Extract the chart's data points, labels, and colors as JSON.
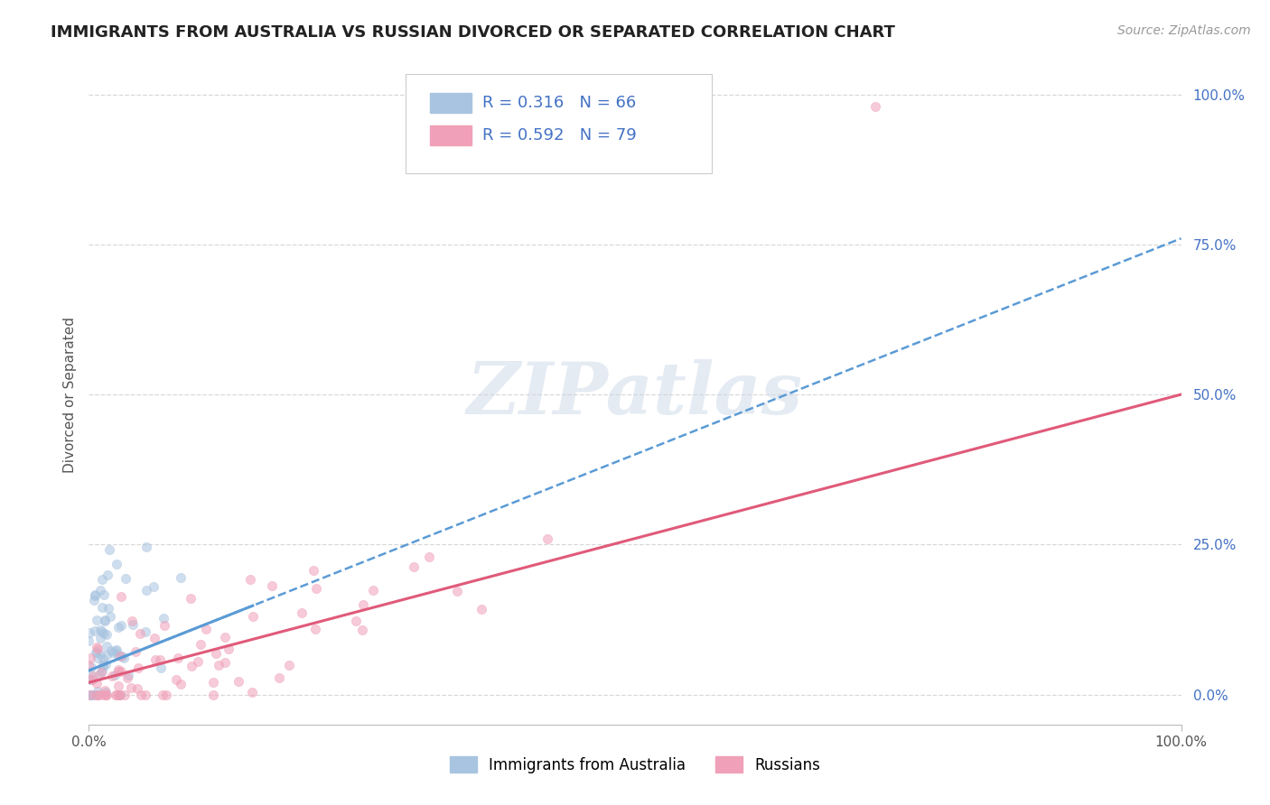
{
  "title": "IMMIGRANTS FROM AUSTRALIA VS RUSSIAN DIVORCED OR SEPARATED CORRELATION CHART",
  "source": "Source: ZipAtlas.com",
  "ylabel": "Divorced or Separated",
  "xlim": [
    0,
    1.0
  ],
  "ylim": [
    -0.05,
    1.05
  ],
  "x_tick_labels": [
    "0.0%",
    "100.0%"
  ],
  "y_tick_labels": [
    "0.0%",
    "25.0%",
    "50.0%",
    "75.0%",
    "100.0%"
  ],
  "y_tick_positions": [
    0.0,
    0.25,
    0.5,
    0.75,
    1.0
  ],
  "color_blue": "#a8c4e0",
  "color_pink": "#f0a0b8",
  "line_blue": "#5b9bd5",
  "line_pink": "#e05a7a",
  "background_color": "#ffffff",
  "grid_color": "#d8d8d8",
  "title_fontsize": 13,
  "axis_label_fontsize": 11,
  "tick_fontsize": 11,
  "source_fontsize": 10,
  "scatter_size": 55,
  "scatter_alpha": 0.55
}
